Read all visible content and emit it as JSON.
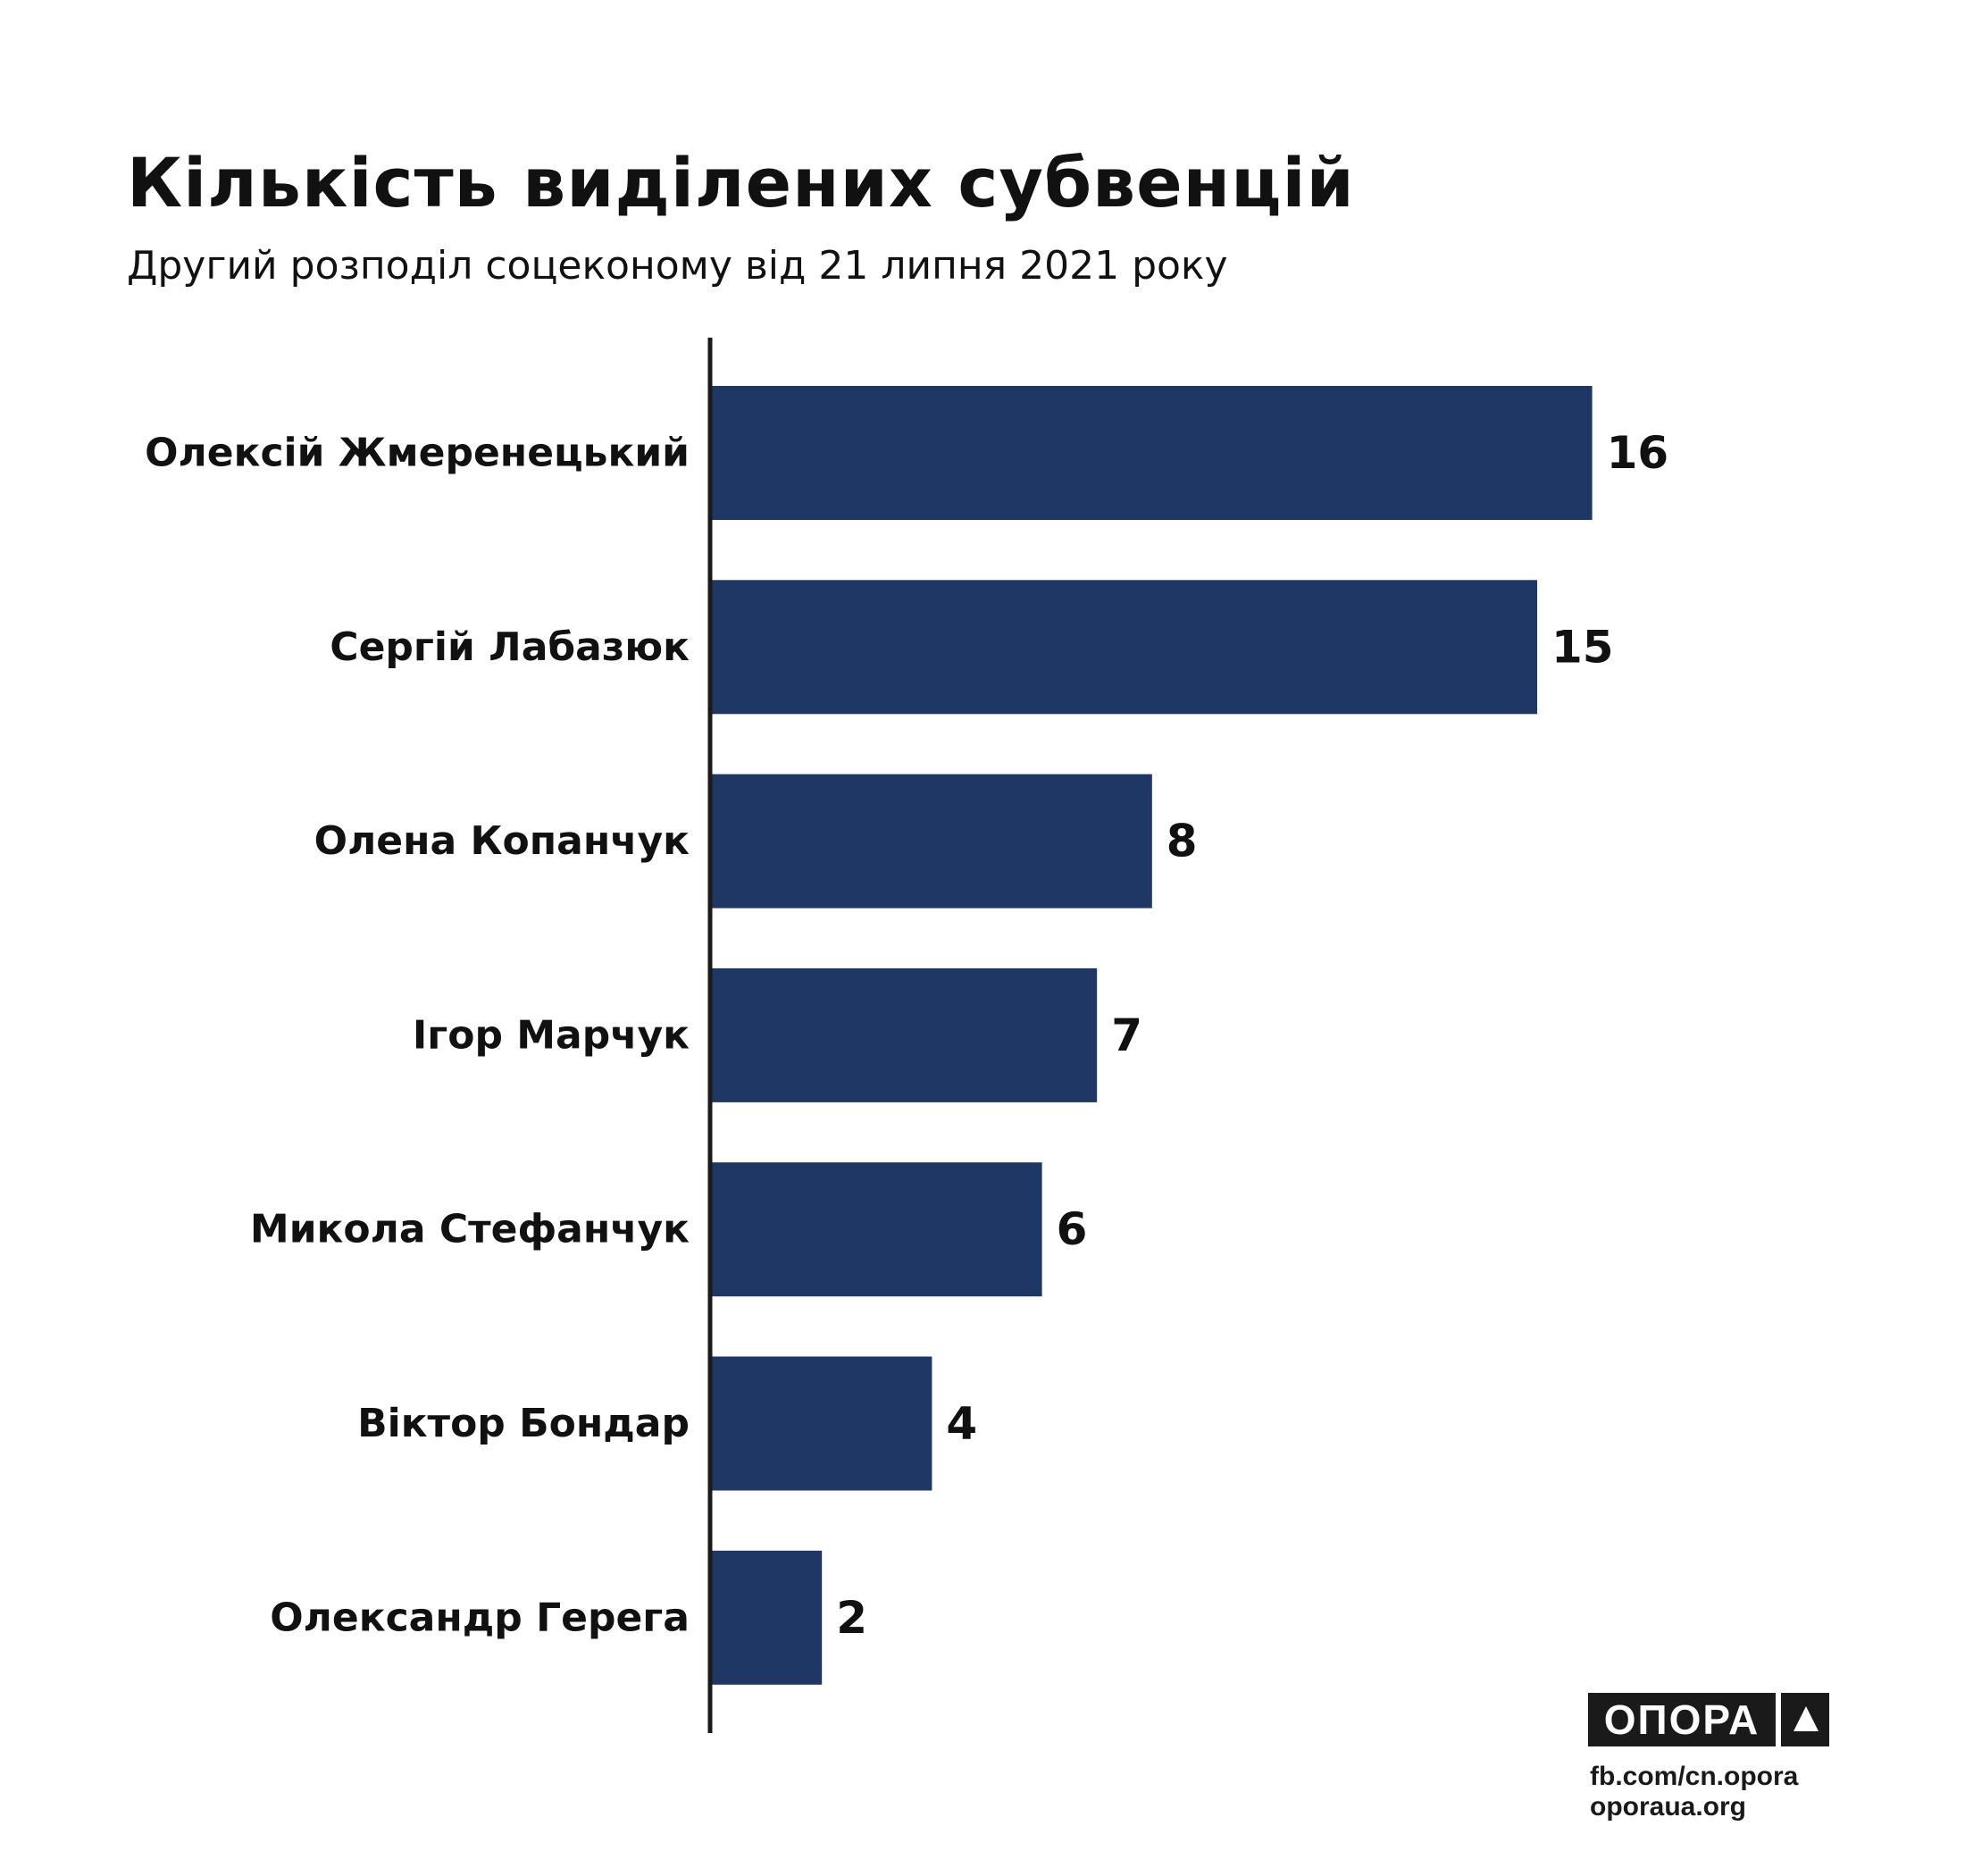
{
  "header": {
    "title": "Кількість виділених субвенцій",
    "subtitle": "Другий розподіл соцеконому від 21 липня 2021 року"
  },
  "chart_data": {
    "type": "bar",
    "orientation": "horizontal",
    "title": "Кількість виділених субвенцій",
    "subtitle": "Другий розподіл соцеконому від 21 липня 2021 року",
    "categories": [
      "Олексій Жмеренецький",
      "Сергій Лабазюк",
      "Олена Копанчук",
      "Ігор Марчук",
      "Микола Стефанчук",
      "Віктор Бондар",
      "Олександр Герега"
    ],
    "values": [
      16,
      15,
      8,
      7,
      6,
      4,
      2
    ],
    "bar_color": "#1f3764",
    "axis_color": "#1a1a1a",
    "xlim": [
      0,
      16
    ],
    "grid": false,
    "legend": "none",
    "data_labels": true
  },
  "footer": {
    "logo_text": "ОПОРА",
    "logo_icon": "triangle-icon",
    "link_facebook": "fb.com/cn.opora",
    "link_site": "oporaua.org"
  }
}
